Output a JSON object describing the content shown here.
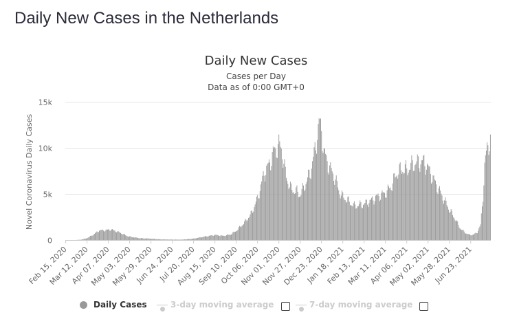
{
  "page": {
    "heading": "Daily New Cases in the Netherlands"
  },
  "colors": {
    "bars": "#999999",
    "grid": "#e6e6e6",
    "axis_text": "#666666",
    "legend_active": "#333333",
    "legend_inactive": "#cccccc"
  },
  "legend": {
    "items": [
      {
        "label": "Daily Cases",
        "active": true,
        "marker": "dot"
      },
      {
        "label": "3-day moving average",
        "active": false,
        "marker": "line-dot"
      },
      {
        "label": "7-day moving average",
        "active": false,
        "marker": "line-dot"
      }
    ]
  },
  "chart_data": {
    "type": "bar",
    "title": "Daily New Cases",
    "subtitle": "Cases per Day",
    "note": "Data as of 0:00 GMT+0",
    "xlabel": "",
    "ylabel": "Novel Coronavirus Daily Cases",
    "ylim": [
      0,
      15000
    ],
    "yticks": [
      0,
      5000,
      10000,
      15000
    ],
    "ytick_labels": [
      "0",
      "5k",
      "10k",
      "15k"
    ],
    "grid": true,
    "legend_position": "bottom",
    "x_tick_labels": [
      "Feb 15, 2020",
      "Mar 12, 2020",
      "Apr 07, 2020",
      "May 03, 2020",
      "May 29, 2020",
      "Jun 24, 2020",
      "Jul 20, 2020",
      "Aug 15, 2020",
      "Sep 10, 2020",
      "Oct 06, 2020",
      "Nov 01, 2020",
      "Nov 27, 2020",
      "Dec 23, 2020",
      "Jan 18, 2021",
      "Feb 13, 2021",
      "Mar 11, 2021",
      "Apr 06, 2021",
      "May 02, 2021",
      "May 28, 2021",
      "Jun 23, 2021"
    ],
    "x_start": "2020-02-15",
    "x_end": "2021-07-17",
    "series": [
      {
        "name": "Daily Cases",
        "keypoints": [
          [
            "2020-02-15",
            0
          ],
          [
            "2020-02-27",
            0
          ],
          [
            "2020-03-05",
            40
          ],
          [
            "2020-03-12",
            200
          ],
          [
            "2020-03-20",
            600
          ],
          [
            "2020-03-27",
            1050
          ],
          [
            "2020-04-03",
            1050
          ],
          [
            "2020-04-10",
            1150
          ],
          [
            "2020-04-20",
            850
          ],
          [
            "2020-05-01",
            400
          ],
          [
            "2020-05-15",
            200
          ],
          [
            "2020-05-29",
            150
          ],
          [
            "2020-06-10",
            70
          ],
          [
            "2020-06-24",
            50
          ],
          [
            "2020-07-05",
            40
          ],
          [
            "2020-07-20",
            150
          ],
          [
            "2020-08-01",
            350
          ],
          [
            "2020-08-15",
            550
          ],
          [
            "2020-08-25",
            450
          ],
          [
            "2020-09-03",
            600
          ],
          [
            "2020-09-10",
            1000
          ],
          [
            "2020-09-20",
            1900
          ],
          [
            "2020-09-28",
            2800
          ],
          [
            "2020-10-06",
            4500
          ],
          [
            "2020-10-14",
            7200
          ],
          [
            "2020-10-20",
            8200
          ],
          [
            "2020-10-26",
            9600
          ],
          [
            "2020-11-01",
            10300
          ],
          [
            "2020-11-04",
            9900
          ],
          [
            "2020-11-10",
            6800
          ],
          [
            "2020-11-16",
            5500
          ],
          [
            "2020-11-22",
            5300
          ],
          [
            "2020-11-27",
            4900
          ],
          [
            "2020-12-03",
            6000
          ],
          [
            "2020-12-10",
            7500
          ],
          [
            "2020-12-16",
            10200
          ],
          [
            "2020-12-20",
            12700
          ],
          [
            "2020-12-23",
            12000
          ],
          [
            "2020-12-26",
            9500
          ],
          [
            "2021-01-01",
            8000
          ],
          [
            "2021-01-08",
            6800
          ],
          [
            "2021-01-14",
            5200
          ],
          [
            "2021-01-18",
            4700
          ],
          [
            "2021-01-25",
            4200
          ],
          [
            "2021-02-01",
            3700
          ],
          [
            "2021-02-13",
            3900
          ],
          [
            "2021-02-22",
            4300
          ],
          [
            "2021-03-01",
            4700
          ],
          [
            "2021-03-11",
            5100
          ],
          [
            "2021-03-18",
            5800
          ],
          [
            "2021-03-25",
            7300
          ],
          [
            "2021-04-01",
            7700
          ],
          [
            "2021-04-06",
            7600
          ],
          [
            "2021-04-13",
            8200
          ],
          [
            "2021-04-20",
            8400
          ],
          [
            "2021-04-27",
            8500
          ],
          [
            "2021-05-02",
            7800
          ],
          [
            "2021-05-09",
            6500
          ],
          [
            "2021-05-16",
            5300
          ],
          [
            "2021-05-22",
            4300
          ],
          [
            "2021-05-28",
            3300
          ],
          [
            "2021-06-04",
            2300
          ],
          [
            "2021-06-10",
            1300
          ],
          [
            "2021-06-16",
            800
          ],
          [
            "2021-06-22",
            550
          ],
          [
            "2021-06-27",
            600
          ],
          [
            "2021-07-01",
            850
          ],
          [
            "2021-07-05",
            1600
          ],
          [
            "2021-07-08",
            4800
          ],
          [
            "2021-07-10",
            8000
          ],
          [
            "2021-07-13",
            10000
          ],
          [
            "2021-07-17",
            11000
          ]
        ]
      }
    ]
  }
}
